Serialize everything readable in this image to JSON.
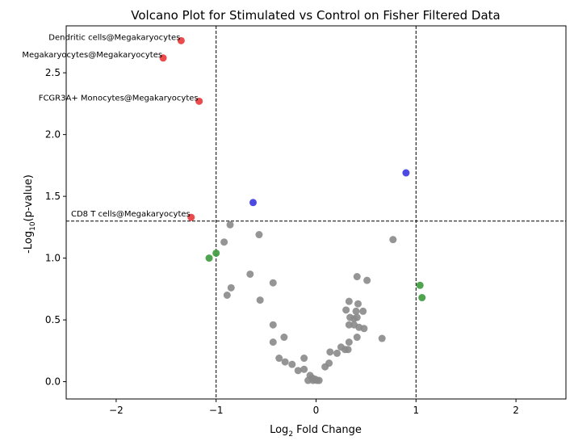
{
  "chart_data": {
    "type": "scatter",
    "title": "Volcano Plot for Stimulated vs Control on Fisher Filtered Data",
    "xlabel": {
      "base": "Log",
      "sub": "2",
      "rest": " Fold Change"
    },
    "ylabel": {
      "base": "-Log",
      "sub": "10",
      "rest": "(p-value)"
    },
    "xlim": [
      -2.5,
      2.5
    ],
    "ylim": [
      -0.14,
      2.88
    ],
    "xticks": [
      {
        "value": -2,
        "label": "−2"
      },
      {
        "value": -1,
        "label": "−1"
      },
      {
        "value": 0,
        "label": "0"
      },
      {
        "value": 1,
        "label": "1"
      },
      {
        "value": 2,
        "label": "2"
      }
    ],
    "yticks": [
      {
        "value": 0.0,
        "label": "0.0"
      },
      {
        "value": 0.5,
        "label": "0.5"
      },
      {
        "value": 1.0,
        "label": "1.0"
      },
      {
        "value": 1.5,
        "label": "1.5"
      },
      {
        "value": 2.0,
        "label": "2.0"
      },
      {
        "value": 2.5,
        "label": "2.5"
      }
    ],
    "threshold_lines": {
      "x": [
        -1,
        1
      ],
      "y": 1.3
    },
    "colors": {
      "significant_down": "#e8393a",
      "significant_up": "#3a36e0",
      "high_fold_change": "#3c9a3c",
      "not_significant": "#8a8a8a"
    },
    "series": [
      {
        "color_key": "significant_down",
        "points": [
          {
            "x": -1.35,
            "y": 2.76,
            "label": "Dendritic cells@Megakaryocytes"
          },
          {
            "x": -1.53,
            "y": 2.62,
            "label": "Megakaryocytes@Megakaryocytes"
          },
          {
            "x": -1.17,
            "y": 2.27,
            "label": "FCGR3A+ Monocytes@Megakaryocytes"
          },
          {
            "x": -1.25,
            "y": 1.33,
            "label": "CD8 T cells@Megakaryocytes"
          }
        ]
      },
      {
        "color_key": "significant_up",
        "points": [
          {
            "x": 0.9,
            "y": 1.69
          },
          {
            "x": -0.63,
            "y": 1.45
          }
        ]
      },
      {
        "color_key": "high_fold_change",
        "points": [
          {
            "x": -1.07,
            "y": 1.0
          },
          {
            "x": -1.0,
            "y": 1.04
          },
          {
            "x": 1.04,
            "y": 0.78
          },
          {
            "x": 1.06,
            "y": 0.68
          }
        ]
      },
      {
        "color_key": "not_significant",
        "points": [
          {
            "x": -0.86,
            "y": 1.27
          },
          {
            "x": -0.92,
            "y": 1.13
          },
          {
            "x": -0.57,
            "y": 1.19
          },
          {
            "x": 0.77,
            "y": 1.15
          },
          {
            "x": -0.66,
            "y": 0.87
          },
          {
            "x": -0.43,
            "y": 0.8
          },
          {
            "x": -0.85,
            "y": 0.76
          },
          {
            "x": -0.89,
            "y": 0.7
          },
          {
            "x": -0.56,
            "y": 0.66
          },
          {
            "x": 0.41,
            "y": 0.85
          },
          {
            "x": 0.51,
            "y": 0.82
          },
          {
            "x": 0.33,
            "y": 0.65
          },
          {
            "x": 0.42,
            "y": 0.63
          },
          {
            "x": 0.3,
            "y": 0.58
          },
          {
            "x": 0.4,
            "y": 0.57
          },
          {
            "x": 0.47,
            "y": 0.57
          },
          {
            "x": 0.34,
            "y": 0.52
          },
          {
            "x": 0.38,
            "y": 0.51
          },
          {
            "x": 0.41,
            "y": 0.52
          },
          {
            "x": 0.33,
            "y": 0.46
          },
          {
            "x": 0.38,
            "y": 0.46
          },
          {
            "x": 0.43,
            "y": 0.44
          },
          {
            "x": 0.48,
            "y": 0.43
          },
          {
            "x": 0.41,
            "y": 0.36
          },
          {
            "x": 0.66,
            "y": 0.35
          },
          {
            "x": -0.43,
            "y": 0.46
          },
          {
            "x": -0.32,
            "y": 0.36
          },
          {
            "x": -0.43,
            "y": 0.32
          },
          {
            "x": 0.33,
            "y": 0.32
          },
          {
            "x": 0.25,
            "y": 0.28
          },
          {
            "x": 0.29,
            "y": 0.26
          },
          {
            "x": 0.32,
            "y": 0.26
          },
          {
            "x": 0.14,
            "y": 0.24
          },
          {
            "x": 0.21,
            "y": 0.23
          },
          {
            "x": -0.37,
            "y": 0.19
          },
          {
            "x": -0.12,
            "y": 0.19
          },
          {
            "x": -0.31,
            "y": 0.16
          },
          {
            "x": -0.24,
            "y": 0.14
          },
          {
            "x": 0.13,
            "y": 0.15
          },
          {
            "x": 0.09,
            "y": 0.12
          },
          {
            "x": -0.18,
            "y": 0.09
          },
          {
            "x": -0.12,
            "y": 0.1
          },
          {
            "x": -0.06,
            "y": 0.05
          },
          {
            "x": -0.04,
            "y": 0.03
          },
          {
            "x": -0.08,
            "y": 0.01
          },
          {
            "x": -0.03,
            "y": 0.01
          },
          {
            "x": 0.01,
            "y": 0.01
          },
          {
            "x": 0.03,
            "y": 0.01
          },
          {
            "x": -0.01,
            "y": 0.02
          }
        ]
      }
    ]
  }
}
